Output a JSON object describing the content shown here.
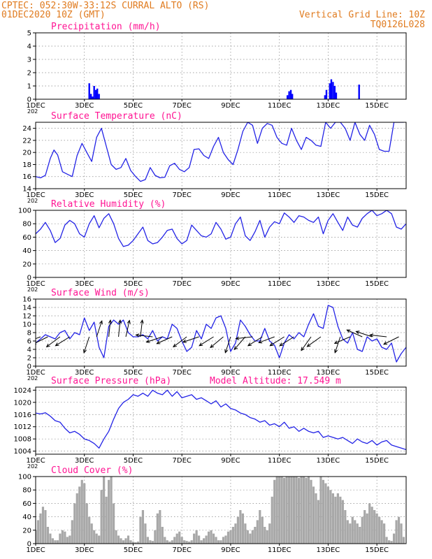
{
  "header": {
    "line1": "CPTEC:  052:30W-33:12S  CURRAL ALTO (RS)",
    "line2": "01DEC2020 10Z (GMT)",
    "grid_note": "Vertical Grid Line: 10Z",
    "code": "TQ0126L028",
    "altitude": "Model Altitude: 17.549 m",
    "color": "#e07b1f"
  },
  "colors": {
    "title": "#ff1493",
    "line": "#2323e6",
    "bar": "#0000ff",
    "cloud": "#a8a8a8",
    "arrow": "#000000"
  },
  "x_axis": {
    "tick_labels": [
      "1DEC",
      "3DEC",
      "5DEC",
      "7DEC",
      "9DEC",
      "11DEC",
      "13DEC",
      "15DEC"
    ],
    "tick_days": [
      1,
      3,
      5,
      7,
      9,
      11,
      13,
      15
    ],
    "range_days": [
      1,
      16.2
    ],
    "year_fragment": "202"
  },
  "chart_data": [
    {
      "type": "bar",
      "title": "Precipitation (mm/h)",
      "ylim": [
        0,
        5
      ],
      "yticks": [
        0,
        1,
        2,
        3,
        4,
        5
      ],
      "grid": true,
      "x": [
        3.2,
        3.27,
        3.33,
        3.4,
        3.47,
        3.53,
        3.6,
        11.33,
        11.4,
        11.47,
        11.53,
        12.87,
        12.93,
        13.07,
        13.13,
        13.2,
        13.27,
        13.33,
        14.27
      ],
      "values": [
        1.2,
        0.4,
        0.2,
        1.0,
        0.7,
        0.8,
        0.4,
        0.3,
        0.6,
        0.7,
        0.4,
        0.3,
        0.7,
        1.2,
        1.5,
        1.3,
        1.0,
        0.5,
        1.1
      ]
    },
    {
      "type": "line",
      "title": "Surface Temperature (nC)",
      "ylim": [
        14,
        25
      ],
      "yticks": [
        14,
        16,
        18,
        20,
        22,
        24
      ],
      "grid": true,
      "x": [
        1.0,
        1.2,
        1.4,
        1.6,
        1.75,
        1.9,
        2.1,
        2.3,
        2.5,
        2.7,
        2.9,
        3.1,
        3.3,
        3.5,
        3.7,
        3.9,
        4.1,
        4.3,
        4.5,
        4.7,
        4.9,
        5.1,
        5.3,
        5.5,
        5.7,
        5.9,
        6.1,
        6.3,
        6.5,
        6.7,
        6.9,
        7.1,
        7.3,
        7.5,
        7.7,
        7.9,
        8.1,
        8.3,
        8.5,
        8.7,
        8.9,
        9.1,
        9.3,
        9.5,
        9.7,
        9.9,
        10.1,
        10.3,
        10.5,
        10.7,
        10.9,
        11.1,
        11.3,
        11.5,
        11.7,
        11.9,
        12.1,
        12.3,
        12.5,
        12.7,
        12.9,
        13.1,
        13.3,
        13.5,
        13.7,
        13.9,
        14.1,
        14.3,
        14.5,
        14.7,
        14.9,
        15.1,
        15.3,
        15.5,
        15.7,
        15.9,
        16.1
      ],
      "values": [
        16.0,
        15.8,
        16.2,
        19.0,
        20.4,
        19.6,
        16.8,
        16.4,
        16.0,
        19.5,
        21.5,
        20.0,
        18.5,
        22.5,
        24.0,
        21.0,
        18.0,
        17.2,
        17.5,
        19.0,
        17.0,
        16.0,
        15.2,
        15.5,
        17.5,
        16.2,
        15.8,
        15.9,
        17.8,
        18.2,
        17.2,
        16.8,
        17.5,
        20.5,
        20.6,
        19.5,
        19.0,
        21.0,
        22.5,
        20.0,
        18.8,
        18.0,
        20.5,
        23.5,
        25.0,
        24.5,
        21.5,
        24.0,
        24.8,
        24.5,
        22.5,
        21.5,
        21.2,
        24.0,
        22.0,
        20.5,
        22.5,
        22.0,
        21.2,
        21.0,
        25.0,
        24.0,
        25.0,
        25.0,
        24.0,
        22.0,
        25.0,
        23.0,
        22.0,
        24.5,
        23.0,
        20.5,
        20.2,
        20.2,
        25.0,
        25.0,
        25.0
      ]
    },
    {
      "type": "line",
      "title": "Relative Humidity (%)",
      "ylim": [
        0,
        100
      ],
      "yticks": [
        0,
        20,
        40,
        60,
        80,
        100
      ],
      "grid": true,
      "x": [
        1.0,
        1.2,
        1.4,
        1.6,
        1.8,
        2.0,
        2.2,
        2.4,
        2.6,
        2.8,
        3.0,
        3.2,
        3.4,
        3.6,
        3.8,
        4.0,
        4.2,
        4.4,
        4.6,
        4.8,
        5.0,
        5.2,
        5.4,
        5.6,
        5.8,
        6.0,
        6.2,
        6.4,
        6.6,
        6.8,
        7.0,
        7.2,
        7.4,
        7.6,
        7.8,
        8.0,
        8.2,
        8.4,
        8.6,
        8.8,
        9.0,
        9.2,
        9.4,
        9.6,
        9.8,
        10.0,
        10.2,
        10.4,
        10.6,
        10.8,
        11.0,
        11.2,
        11.4,
        11.6,
        11.8,
        12.0,
        12.2,
        12.4,
        12.6,
        12.8,
        13.0,
        13.2,
        13.4,
        13.6,
        13.8,
        14.0,
        14.2,
        14.4,
        14.6,
        14.8,
        15.0,
        15.2,
        15.4,
        15.6,
        15.8,
        16.0,
        16.2
      ],
      "values": [
        65,
        72,
        82,
        70,
        52,
        58,
        78,
        85,
        80,
        65,
        60,
        80,
        92,
        74,
        88,
        95,
        80,
        58,
        46,
        48,
        55,
        65,
        75,
        55,
        50,
        52,
        60,
        70,
        72,
        58,
        50,
        55,
        78,
        70,
        62,
        60,
        65,
        82,
        72,
        57,
        60,
        80,
        90,
        62,
        55,
        68,
        85,
        60,
        75,
        83,
        80,
        96,
        90,
        82,
        92,
        90,
        85,
        82,
        90,
        65,
        85,
        95,
        82,
        70,
        90,
        78,
        75,
        88,
        95,
        100,
        92,
        95,
        100,
        95,
        75,
        72,
        80
      ]
    },
    {
      "type": "line",
      "title": "Surface Wind (m/s)",
      "ylim": [
        0,
        16
      ],
      "yticks": [
        0,
        2,
        4,
        6,
        8,
        10,
        12,
        14,
        16
      ],
      "grid": true,
      "x": [
        1.0,
        1.2,
        1.4,
        1.6,
        1.8,
        2.0,
        2.2,
        2.4,
        2.6,
        2.8,
        3.0,
        3.2,
        3.4,
        3.6,
        3.8,
        4.0,
        4.2,
        4.4,
        4.6,
        4.8,
        5.0,
        5.2,
        5.4,
        5.6,
        5.8,
        6.0,
        6.2,
        6.4,
        6.6,
        6.8,
        7.0,
        7.2,
        7.4,
        7.6,
        7.8,
        8.0,
        8.2,
        8.4,
        8.6,
        8.8,
        9.0,
        9.2,
        9.4,
        9.6,
        9.8,
        10.0,
        10.2,
        10.4,
        10.6,
        10.8,
        11.0,
        11.2,
        11.4,
        11.6,
        11.8,
        12.0,
        12.2,
        12.4,
        12.6,
        12.8,
        13.0,
        13.2,
        13.4,
        13.6,
        13.8,
        14.0,
        14.2,
        14.4,
        14.6,
        14.8,
        15.0,
        15.2,
        15.4,
        15.6,
        15.8,
        16.0,
        16.2
      ],
      "values": [
        5.5,
        6.5,
        7.5,
        7.0,
        6.5,
        8.0,
        8.5,
        6.5,
        8.0,
        7.5,
        11.5,
        8.5,
        10.5,
        4.5,
        2.0,
        9.5,
        11.0,
        10.0,
        11.0,
        8.0,
        7.0,
        7.0,
        7.5,
        6.5,
        8.5,
        6.0,
        7.0,
        6.5,
        10.0,
        9.0,
        6.0,
        3.5,
        4.5,
        8.5,
        6.5,
        10.0,
        9.0,
        11.5,
        12.0,
        9.0,
        3.5,
        5.5,
        11.0,
        9.5,
        7.5,
        6.0,
        6.0,
        9.0,
        6.0,
        5.0,
        2.0,
        5.5,
        7.5,
        6.5,
        8.0,
        7.0,
        10.0,
        12.5,
        9.5,
        9.0,
        14.5,
        14.0,
        9.5,
        6.5,
        5.5,
        8.0,
        4.0,
        3.5,
        7.0,
        6.0,
        6.5,
        4.5,
        4.0,
        5.5,
        1.0,
        3.0,
        4.5
      ],
      "arrows": [
        {
          "day": 1.2,
          "u": -0.8,
          "v": -0.3
        },
        {
          "day": 1.5,
          "u": -0.8,
          "v": -0.4
        },
        {
          "day": 2.0,
          "u": -0.8,
          "v": -0.6
        },
        {
          "day": 2.4,
          "u": -0.8,
          "v": -0.5
        },
        {
          "day": 3.2,
          "u": -0.3,
          "v": -0.9
        },
        {
          "day": 3.5,
          "u": 0.3,
          "v": 0.9
        },
        {
          "day": 4.0,
          "u": 0.1,
          "v": 1.0
        },
        {
          "day": 4.4,
          "u": 0.1,
          "v": 1.0
        },
        {
          "day": 4.7,
          "u": 0.2,
          "v": 0.9
        },
        {
          "day": 5.3,
          "u": 0.1,
          "v": 0.9
        },
        {
          "day": 5.8,
          "u": -0.9,
          "v": 0.1
        },
        {
          "day": 6.2,
          "u": -0.9,
          "v": -0.3
        },
        {
          "day": 6.6,
          "u": -0.9,
          "v": -0.4
        },
        {
          "day": 7.2,
          "u": -0.8,
          "v": -0.6
        },
        {
          "day": 7.7,
          "u": -0.9,
          "v": -0.3
        },
        {
          "day": 8.3,
          "u": -0.8,
          "v": -0.5
        },
        {
          "day": 8.7,
          "u": -0.6,
          "v": -0.5
        },
        {
          "day": 9.0,
          "u": -0.3,
          "v": -0.9
        },
        {
          "day": 9.6,
          "u": -0.6,
          "v": -0.7
        },
        {
          "day": 9.9,
          "u": -0.9,
          "v": -0.1
        },
        {
          "day": 10.3,
          "u": -0.8,
          "v": -0.5
        },
        {
          "day": 10.8,
          "u": -0.8,
          "v": -0.3
        },
        {
          "day": 11.2,
          "u": -0.8,
          "v": -0.5
        },
        {
          "day": 11.6,
          "u": -0.8,
          "v": -0.5
        },
        {
          "day": 12.3,
          "u": -0.5,
          "v": -0.7
        },
        {
          "day": 12.7,
          "u": -0.7,
          "v": -0.5
        },
        {
          "day": 13.5,
          "u": -0.3,
          "v": -0.9
        },
        {
          "day": 13.9,
          "u": -0.7,
          "v": -0.3
        },
        {
          "day": 14.4,
          "u": -0.9,
          "v": 0.4
        },
        {
          "day": 14.8,
          "u": -0.9,
          "v": 0.3
        },
        {
          "day": 15.4,
          "u": -0.9,
          "v": 0.1
        },
        {
          "day": 15.9,
          "u": -0.8,
          "v": -0.4
        }
      ]
    },
    {
      "type": "line",
      "title": "Surface Pressure (hPa)",
      "ylim": [
        1003,
        1025
      ],
      "yticks": [
        1004,
        1008,
        1012,
        1016,
        1020,
        1024
      ],
      "grid": true,
      "x": [
        1.0,
        1.2,
        1.4,
        1.6,
        1.8,
        2.0,
        2.2,
        2.4,
        2.6,
        2.8,
        3.0,
        3.2,
        3.4,
        3.6,
        3.8,
        4.0,
        4.2,
        4.4,
        4.6,
        4.8,
        5.0,
        5.2,
        5.4,
        5.6,
        5.8,
        6.0,
        6.2,
        6.4,
        6.6,
        6.8,
        7.0,
        7.2,
        7.4,
        7.6,
        7.8,
        8.0,
        8.2,
        8.4,
        8.6,
        8.8,
        9.0,
        9.2,
        9.4,
        9.6,
        9.8,
        10.0,
        10.2,
        10.4,
        10.6,
        10.8,
        11.0,
        11.2,
        11.4,
        11.6,
        11.8,
        12.0,
        12.2,
        12.4,
        12.6,
        12.8,
        13.0,
        13.2,
        13.4,
        13.6,
        13.8,
        14.0,
        14.2,
        14.4,
        14.6,
        14.8,
        15.0,
        15.2,
        15.4,
        15.6,
        15.8,
        16.0,
        16.2
      ],
      "values": [
        1016.5,
        1016.2,
        1016.6,
        1015.5,
        1014.0,
        1013.5,
        1011.5,
        1010.0,
        1010.5,
        1009.5,
        1008.0,
        1007.5,
        1006.5,
        1005.0,
        1008.0,
        1010.5,
        1014.5,
        1018.0,
        1020.0,
        1021.0,
        1022.5,
        1022.0,
        1023.0,
        1022.0,
        1024.0,
        1023.0,
        1022.5,
        1024.0,
        1022.0,
        1023.5,
        1021.5,
        1022.0,
        1022.5,
        1021.0,
        1021.5,
        1020.5,
        1019.5,
        1020.5,
        1018.5,
        1019.5,
        1018.0,
        1017.5,
        1016.5,
        1016.0,
        1015.0,
        1014.5,
        1013.5,
        1014.0,
        1012.5,
        1013.0,
        1012.0,
        1013.5,
        1011.5,
        1012.0,
        1010.5,
        1011.5,
        1010.5,
        1010.0,
        1010.5,
        1008.5,
        1009.0,
        1008.5,
        1008.0,
        1008.5,
        1007.5,
        1006.5,
        1008.0,
        1007.0,
        1006.5,
        1007.5,
        1006.0,
        1007.0,
        1007.5,
        1006.0,
        1005.5,
        1005.0,
        1004.5
      ]
    },
    {
      "type": "area",
      "title": "Cloud Cover (%)",
      "ylim": [
        0,
        100
      ],
      "yticks": [
        0,
        20,
        40,
        60,
        80,
        100
      ],
      "grid": true,
      "x": [
        1.0,
        1.1,
        1.2,
        1.3,
        1.4,
        1.5,
        1.6,
        1.7,
        1.8,
        1.9,
        2.0,
        2.1,
        2.2,
        2.3,
        2.4,
        2.5,
        2.6,
        2.7,
        2.8,
        2.9,
        3.0,
        3.1,
        3.2,
        3.3,
        3.4,
        3.5,
        3.6,
        3.7,
        3.8,
        3.9,
        4.0,
        4.1,
        4.2,
        4.3,
        4.4,
        4.5,
        4.6,
        4.7,
        4.8,
        4.9,
        5.0,
        5.1,
        5.2,
        5.3,
        5.4,
        5.5,
        5.6,
        5.7,
        5.8,
        5.9,
        6.0,
        6.1,
        6.2,
        6.3,
        6.4,
        6.5,
        6.6,
        6.7,
        6.8,
        6.9,
        7.0,
        7.1,
        7.2,
        7.3,
        7.4,
        7.5,
        7.6,
        7.7,
        7.8,
        7.9,
        8.0,
        8.1,
        8.2,
        8.3,
        8.4,
        8.5,
        8.6,
        8.7,
        8.8,
        8.9,
        9.0,
        9.1,
        9.2,
        9.3,
        9.4,
        9.5,
        9.6,
        9.7,
        9.8,
        9.9,
        10.0,
        10.1,
        10.2,
        10.3,
        10.4,
        10.5,
        10.6,
        10.7,
        10.8,
        10.9,
        11.0,
        11.1,
        11.2,
        11.3,
        11.4,
        11.5,
        11.6,
        11.7,
        11.8,
        11.9,
        12.0,
        12.1,
        12.2,
        12.3,
        12.4,
        12.5,
        12.6,
        12.7,
        12.8,
        12.9,
        13.0,
        13.1,
        13.2,
        13.3,
        13.4,
        13.5,
        13.6,
        13.7,
        13.8,
        13.9,
        14.0,
        14.1,
        14.2,
        14.3,
        14.4,
        14.5,
        14.6,
        14.7,
        14.8,
        14.9,
        15.0,
        15.1,
        15.2,
        15.3,
        15.4,
        15.5,
        15.6,
        15.7,
        15.8,
        15.9,
        16.0,
        16.1
      ],
      "values": [
        20,
        35,
        45,
        55,
        50,
        25,
        15,
        8,
        5,
        5,
        15,
        20,
        18,
        10,
        12,
        35,
        60,
        75,
        85,
        95,
        90,
        60,
        40,
        30,
        20,
        15,
        12,
        80,
        100,
        70,
        95,
        100,
        60,
        20,
        12,
        8,
        5,
        8,
        12,
        5,
        3,
        2,
        3,
        40,
        50,
        30,
        10,
        5,
        4,
        20,
        45,
        50,
        25,
        10,
        5,
        3,
        5,
        10,
        15,
        18,
        10,
        5,
        4,
        3,
        5,
        15,
        20,
        12,
        5,
        8,
        12,
        18,
        20,
        15,
        10,
        5,
        5,
        10,
        12,
        18,
        20,
        25,
        30,
        40,
        50,
        45,
        30,
        20,
        15,
        20,
        25,
        35,
        50,
        40,
        25,
        20,
        30,
        70,
        95,
        100,
        100,
        100,
        98,
        100,
        100,
        100,
        100,
        100,
        98,
        100,
        100,
        98,
        100,
        95,
        85,
        75,
        65,
        100,
        95,
        90,
        85,
        80,
        75,
        70,
        75,
        70,
        65,
        50,
        35,
        30,
        40,
        35,
        30,
        25,
        40,
        50,
        45,
        60,
        55,
        50,
        45,
        40,
        35,
        30,
        10,
        5,
        4,
        15,
        35,
        40,
        30,
        10
      ]
    }
  ]
}
